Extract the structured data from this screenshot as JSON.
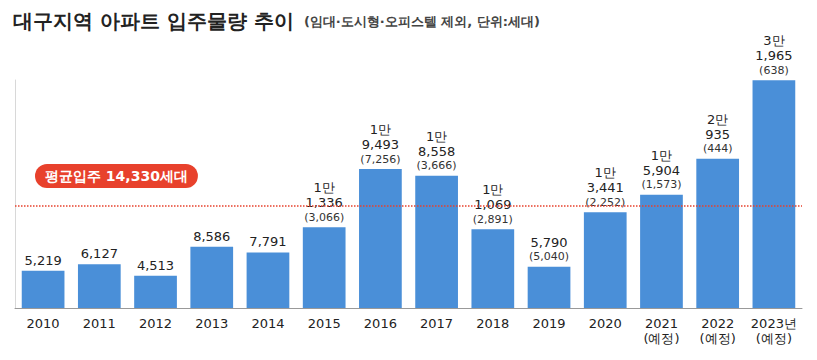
{
  "chart_data": {
    "type": "bar",
    "title": "대구지역 아파트 입주물량 추이",
    "subtitle": "(임대·도시형·오피스텔 제외, 단위:세대)",
    "categories": [
      "2010",
      "2011",
      "2012",
      "2013",
      "2014",
      "2015",
      "2016",
      "2017",
      "2018",
      "2019",
      "2020",
      "2021\n(예정)",
      "2022\n(예정)",
      "2023년\n(예정)"
    ],
    "values": [
      5219,
      6127,
      4513,
      8586,
      7791,
      11336,
      19493,
      18558,
      11069,
      5790,
      13441,
      15904,
      20935,
      31965
    ],
    "value_labels": [
      "5,219",
      "6,127",
      "4,513",
      "8,586",
      "7,791",
      "1만\n1,336",
      "1만\n9,493",
      "1만\n8,558",
      "1만\n1,069",
      "5,790",
      "1만\n3,441",
      "1만\n5,904",
      "2만\n935",
      "3만\n1,965"
    ],
    "sub_values": [
      null,
      null,
      null,
      null,
      null,
      3066,
      7256,
      3666,
      2891,
      5040,
      2252,
      1573,
      444,
      638
    ],
    "sub_value_labels": [
      null,
      null,
      null,
      null,
      null,
      "(3,066)",
      "(7,256)",
      "(3,666)",
      "(2,891)",
      "(5,040)",
      "(2,252)",
      "(1,573)",
      "(444)",
      "(638)"
    ],
    "color": "#4a8fd8",
    "ylim": [
      0,
      32000
    ],
    "grid": false,
    "data_labels": true,
    "tick_labels": "x",
    "average": 14330,
    "average_label": "평균입주 14,330세대"
  }
}
